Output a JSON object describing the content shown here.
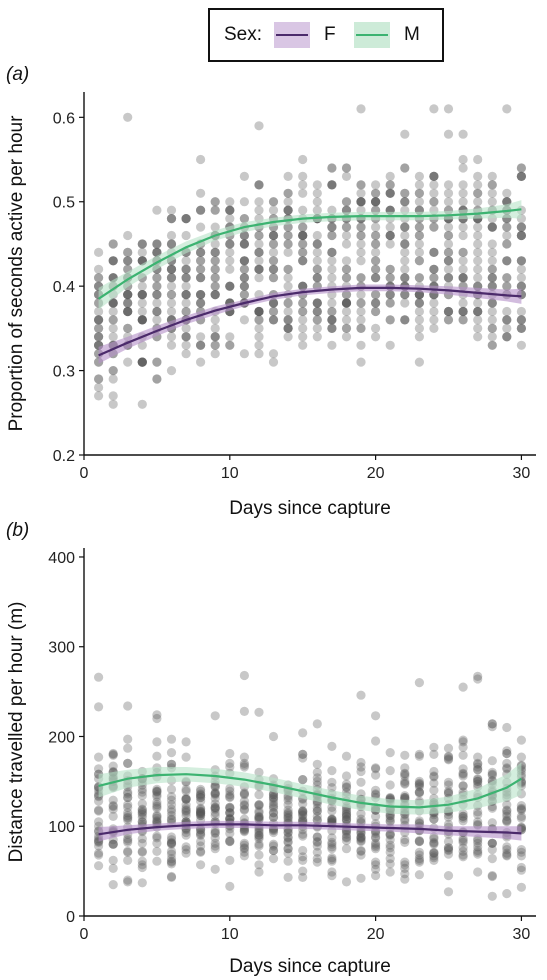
{
  "legend": {
    "title": "Sex:",
    "entries": [
      {
        "label": "F",
        "color": "#4B2A6B",
        "fill": "#B48FC8"
      },
      {
        "label": "M",
        "color": "#3CB371",
        "fill": "#B8E3C8"
      }
    ]
  },
  "colors": {
    "points": "#555555",
    "axis": "#111111"
  },
  "chart_data": [
    {
      "panel_label": "(a)",
      "type": "scatter",
      "xlabel": "Days since capture",
      "ylabel": "Proportion of seconds active per hour",
      "xlim": [
        0,
        31
      ],
      "ylim": [
        0.2,
        0.63
      ],
      "xticks": [
        0,
        10,
        20,
        30
      ],
      "yticks": [
        0.2,
        0.3,
        0.4,
        0.5,
        0.6
      ],
      "ytick_labels": [
        "0.2",
        "0.3",
        "0.4",
        "0.5",
        "0.6"
      ],
      "grid": false,
      "series": [
        {
          "name": "F",
          "type": "line",
          "x": [
            1,
            3,
            5,
            7,
            9,
            11,
            13,
            15,
            17,
            19,
            21,
            23,
            25,
            27,
            29,
            30
          ],
          "y": [
            0.318,
            0.333,
            0.347,
            0.36,
            0.371,
            0.38,
            0.388,
            0.393,
            0.396,
            0.398,
            0.398,
            0.397,
            0.395,
            0.392,
            0.389,
            0.388
          ],
          "lower": [
            0.308,
            0.326,
            0.341,
            0.355,
            0.366,
            0.376,
            0.384,
            0.389,
            0.392,
            0.394,
            0.394,
            0.393,
            0.39,
            0.386,
            0.382,
            0.379
          ],
          "upper": [
            0.328,
            0.34,
            0.353,
            0.365,
            0.376,
            0.384,
            0.392,
            0.397,
            0.4,
            0.402,
            0.402,
            0.401,
            0.4,
            0.398,
            0.396,
            0.397
          ]
        },
        {
          "name": "M",
          "type": "line",
          "x": [
            1,
            3,
            5,
            7,
            9,
            11,
            13,
            15,
            17,
            19,
            21,
            23,
            25,
            27,
            29,
            30
          ],
          "y": [
            0.385,
            0.408,
            0.428,
            0.446,
            0.46,
            0.47,
            0.476,
            0.48,
            0.482,
            0.483,
            0.483,
            0.483,
            0.484,
            0.486,
            0.489,
            0.491
          ],
          "lower": [
            0.372,
            0.399,
            0.42,
            0.439,
            0.454,
            0.464,
            0.471,
            0.475,
            0.477,
            0.478,
            0.478,
            0.478,
            0.479,
            0.48,
            0.481,
            0.48
          ],
          "upper": [
            0.398,
            0.417,
            0.436,
            0.453,
            0.466,
            0.476,
            0.481,
            0.485,
            0.487,
            0.488,
            0.488,
            0.488,
            0.489,
            0.492,
            0.497,
            0.502
          ]
        }
      ],
      "scatter": {
        "mu_f": [
          0.318,
          0.398,
          0.388
        ],
        "mu_m": [
          0.385,
          0.483,
          0.491
        ],
        "spread": 0.055,
        "clip": [
          0.21,
          0.61
        ],
        "per_day": 34,
        "round": 0.01
      }
    },
    {
      "panel_label": "(b)",
      "type": "scatter",
      "xlabel": "Days since capture",
      "ylabel": "Distance travelled per hour (m)",
      "xlim": [
        0,
        31
      ],
      "ylim": [
        0,
        410
      ],
      "xticks": [
        0,
        10,
        20,
        30
      ],
      "yticks": [
        0,
        100,
        200,
        300,
        400
      ],
      "ytick_labels": [
        "0",
        "100",
        "200",
        "300",
        "400"
      ],
      "grid": false,
      "series": [
        {
          "name": "F",
          "type": "line",
          "x": [
            1,
            3,
            5,
            7,
            9,
            11,
            13,
            15,
            17,
            19,
            21,
            23,
            25,
            27,
            29,
            30
          ],
          "y": [
            91,
            96,
            99,
            101,
            102,
            102,
            101,
            101,
            100,
            99,
            98,
            97,
            95,
            94,
            93,
            92
          ],
          "lower": [
            83,
            91,
            95,
            97,
            98,
            98,
            97,
            97,
            96,
            95,
            94,
            92,
            90,
            88,
            86,
            84
          ],
          "upper": [
            99,
            101,
            103,
            105,
            106,
            106,
            105,
            105,
            104,
            103,
            102,
            102,
            100,
            100,
            100,
            100
          ]
        },
        {
          "name": "M",
          "type": "line",
          "x": [
            1,
            3,
            5,
            7,
            9,
            11,
            13,
            15,
            17,
            19,
            21,
            23,
            25,
            27,
            29,
            30
          ],
          "y": [
            145,
            153,
            157,
            158,
            156,
            152,
            146,
            139,
            132,
            126,
            122,
            121,
            124,
            131,
            143,
            153
          ],
          "lower": [
            132,
            143,
            148,
            150,
            148,
            144,
            138,
            131,
            124,
            118,
            114,
            113,
            115,
            120,
            128,
            135
          ],
          "upper": [
            158,
            163,
            166,
            166,
            164,
            160,
            154,
            147,
            140,
            134,
            130,
            129,
            133,
            142,
            158,
            171
          ]
        }
      ],
      "scatter": {
        "mu_f": [
          85,
          95,
          90
        ],
        "mu_m": [
          140,
          125,
          150
        ],
        "spread": 45,
        "clip": [
          15,
          395
        ],
        "per_day": 30,
        "round": 1
      }
    }
  ]
}
